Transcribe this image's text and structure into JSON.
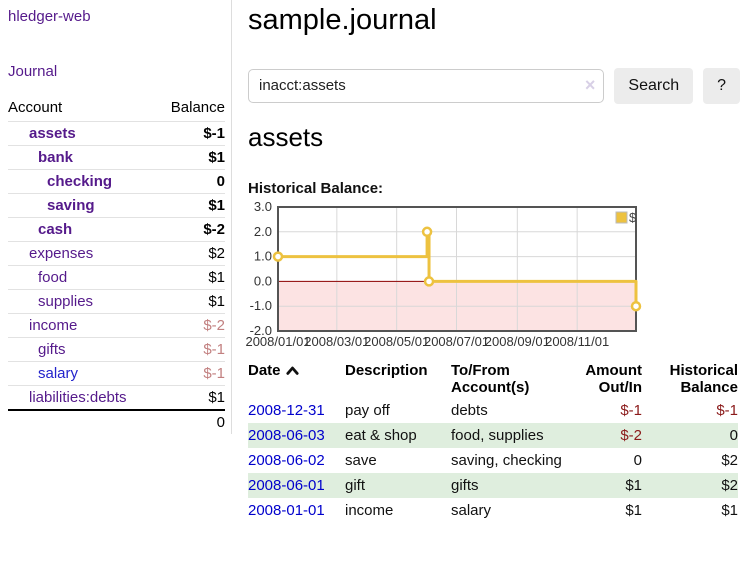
{
  "sidebar": {
    "brand": "hledger-web",
    "journal_link": "Journal",
    "accounts_table": {
      "headers": [
        "Account",
        "Balance"
      ],
      "rows": [
        {
          "label": "assets",
          "depth": 1,
          "bold": true,
          "balance": "$-1",
          "neg": true
        },
        {
          "label": "bank",
          "depth": 2,
          "bold": true,
          "balance": "$1"
        },
        {
          "label": "checking",
          "depth": 3,
          "bold": true,
          "balance": "0"
        },
        {
          "label": "saving",
          "depth": 3,
          "bold": true,
          "balance": "$1"
        },
        {
          "label": "cash",
          "depth": 2,
          "bold": true,
          "balance": "$-2",
          "neg": true
        },
        {
          "label": "expenses",
          "depth": 1,
          "balance": "$2"
        },
        {
          "label": "food",
          "depth": 2,
          "balance": "$1"
        },
        {
          "label": "supplies",
          "depth": 2,
          "balance": "$1"
        },
        {
          "label": "income",
          "depth": 1,
          "balance": "$-2",
          "neg": true,
          "muted": true
        },
        {
          "label": "gifts",
          "depth": 2,
          "balance": "$-1",
          "neg": true,
          "muted": true
        },
        {
          "label": "salary",
          "depth": 2,
          "balance": "$-1",
          "neg": true,
          "muted": true,
          "unvisited": true
        },
        {
          "label": "liabilities:debts",
          "depth": 1,
          "balance": "$1"
        }
      ],
      "total": "0"
    }
  },
  "main": {
    "title": "sample.journal",
    "search": {
      "value": "inacct:assets",
      "clear_icon": "×",
      "search_button": "Search",
      "help_button": "?"
    },
    "account_heading": "assets",
    "section_label": "Historical Balance:"
  },
  "chart_data": {
    "type": "line",
    "step": true,
    "title": "Historical Balance",
    "series": [
      {
        "name": "$",
        "color": "#EDC240",
        "points": [
          {
            "date": "2008-01-01",
            "value": 1
          },
          {
            "date": "2008-06-01",
            "value": 2
          },
          {
            "date": "2008-06-03",
            "value": 0
          },
          {
            "date": "2008-12-31",
            "value": -1
          }
        ]
      }
    ],
    "x_range": [
      "2008-01-01",
      "2008-12-31"
    ],
    "x_ticks": [
      "2008/01/01",
      "2008/03/01",
      "2008/05/01",
      "2008/07/01",
      "2008/09/01",
      "2008/11/01"
    ],
    "y_ticks": [
      "3.0",
      "2.0",
      "1.0",
      "0.0",
      "-1.0",
      "-2.0"
    ],
    "ylim": [
      -2,
      3
    ],
    "grid": true,
    "negative_region_color": "#fce3e3",
    "zero_line_color": "#8b0000",
    "legend": {
      "label": "$",
      "position": "top-right"
    }
  },
  "register": {
    "headers": [
      "Date",
      "Description",
      "To/From Account(s)",
      "Amount Out/In",
      "Historical Balance"
    ],
    "rows": [
      {
        "date": "2008-12-31",
        "description": "pay off",
        "accounts": "debts",
        "amount": "$-1",
        "amount_neg": true,
        "balance": "$-1",
        "balance_neg": true
      },
      {
        "date": "2008-06-03",
        "description": "eat & shop",
        "accounts": "food, supplies",
        "amount": "$-2",
        "amount_neg": true,
        "balance": "0"
      },
      {
        "date": "2008-06-02",
        "description": "save",
        "accounts": "saving, checking",
        "amount": "0",
        "balance": "$2"
      },
      {
        "date": "2008-06-01",
        "description": "gift",
        "accounts": "gifts",
        "amount": "$1",
        "balance": "$2"
      },
      {
        "date": "2008-01-01",
        "description": "income",
        "accounts": "salary",
        "amount": "$1",
        "balance": "$1"
      }
    ]
  }
}
